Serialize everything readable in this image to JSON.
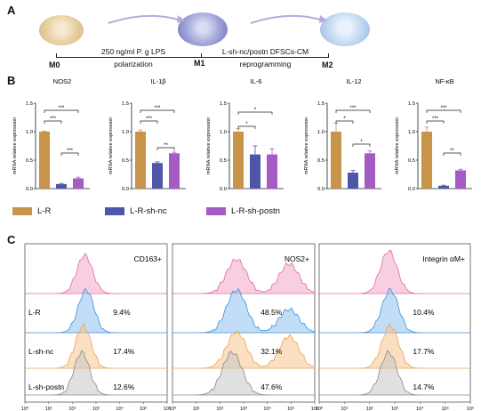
{
  "panels": {
    "a": "A",
    "b": "B",
    "c": "C"
  },
  "panel_a": {
    "states": [
      "M0",
      "M1",
      "M2"
    ],
    "step1_top": "250 ng/ml P. g LPS",
    "step1_bottom": "polarization",
    "step2_top": "L-sh-nc/postn DFSCs-CM",
    "step2_bottom": "reprogramming"
  },
  "panel_b": {
    "ylabel": "mRNA relative expression",
    "colors": {
      "L-R": "#c8944a",
      "L-R-sh-nc": "#4f56a8",
      "L-R-sh-postn": "#a45bc4"
    },
    "legend": [
      "L-R",
      "L-R-sh-nc",
      "L-R-sh-postn"
    ]
  },
  "chart_data": [
    {
      "type": "bar",
      "title": "NOS2",
      "categories": [
        "L-R",
        "L-R-sh-nc",
        "L-R-sh-postn"
      ],
      "values": [
        1.0,
        0.08,
        0.18
      ],
      "errors": [
        0.01,
        0.01,
        0.02
      ],
      "ylim": [
        0,
        1.5
      ],
      "yticks": [
        "0.0",
        "0.5",
        "1.0",
        "1.5"
      ],
      "sig": [
        "***",
        "***",
        "***"
      ]
    },
    {
      "type": "bar",
      "title": "IL-1β",
      "categories": [
        "L-R",
        "L-R-sh-nc",
        "L-R-sh-postn"
      ],
      "values": [
        1.0,
        0.45,
        0.62
      ],
      "errors": [
        0.03,
        0.02,
        0.02
      ],
      "ylim": [
        0,
        1.5
      ],
      "yticks": [
        "0.0",
        "0.5",
        "1.0",
        "1.5"
      ],
      "sig": [
        "***",
        "***",
        "**"
      ]
    },
    {
      "type": "bar",
      "title": "IL-6",
      "categories": [
        "L-R",
        "L-R-sh-nc",
        "L-R-sh-postn"
      ],
      "values": [
        1.0,
        0.6,
        0.6
      ],
      "errors": [
        0.05,
        0.15,
        0.1
      ],
      "ylim": [
        0,
        1.5
      ],
      "yticks": [
        "0.0",
        "0.5",
        "1.0",
        "1.5"
      ],
      "sig": [
        "*",
        "*"
      ]
    },
    {
      "type": "bar",
      "title": "IL-12",
      "categories": [
        "L-R",
        "L-R-sh-nc",
        "L-R-sh-postn"
      ],
      "values": [
        1.0,
        0.28,
        0.62
      ],
      "errors": [
        0.15,
        0.04,
        0.04
      ],
      "ylim": [
        0,
        1.5
      ],
      "yticks": [
        "0.0",
        "0.5",
        "1.0",
        "1.5"
      ],
      "sig": [
        "***",
        "*",
        "*"
      ]
    },
    {
      "type": "bar",
      "title": "NF-κB",
      "categories": [
        "L-R",
        "L-R-sh-nc",
        "L-R-sh-postn"
      ],
      "values": [
        1.0,
        0.05,
        0.32
      ],
      "errors": [
        0.08,
        0.01,
        0.02
      ],
      "ylim": [
        0,
        1.5
      ],
      "yticks": [
        "0.0",
        "0.5",
        "1.0",
        "1.5"
      ],
      "sig": [
        "***",
        "***",
        "**"
      ]
    }
  ],
  "panel_c": {
    "row_labels": [
      "L-R",
      "L-sh-nc",
      "L-sh-postn"
    ],
    "row_colors": [
      "#f3a6c8",
      "#8fc3ef",
      "#f5c58c",
      "#c7c7c7"
    ],
    "xticks": [
      "10⁰",
      "10¹",
      "10²",
      "10³",
      "10⁴",
      "10⁵",
      "10⁶"
    ],
    "plots": [
      {
        "title": "CD163+",
        "percents": [
          "9.4%",
          "17.4%",
          "12.6%"
        ]
      },
      {
        "title": "NOS2+",
        "percents": [
          "48.5%",
          "32.1%",
          "47.6%"
        ]
      },
      {
        "title": "Integrin αM+",
        "percents": [
          "10.4%",
          "17.7%",
          "14.7%"
        ]
      }
    ]
  }
}
